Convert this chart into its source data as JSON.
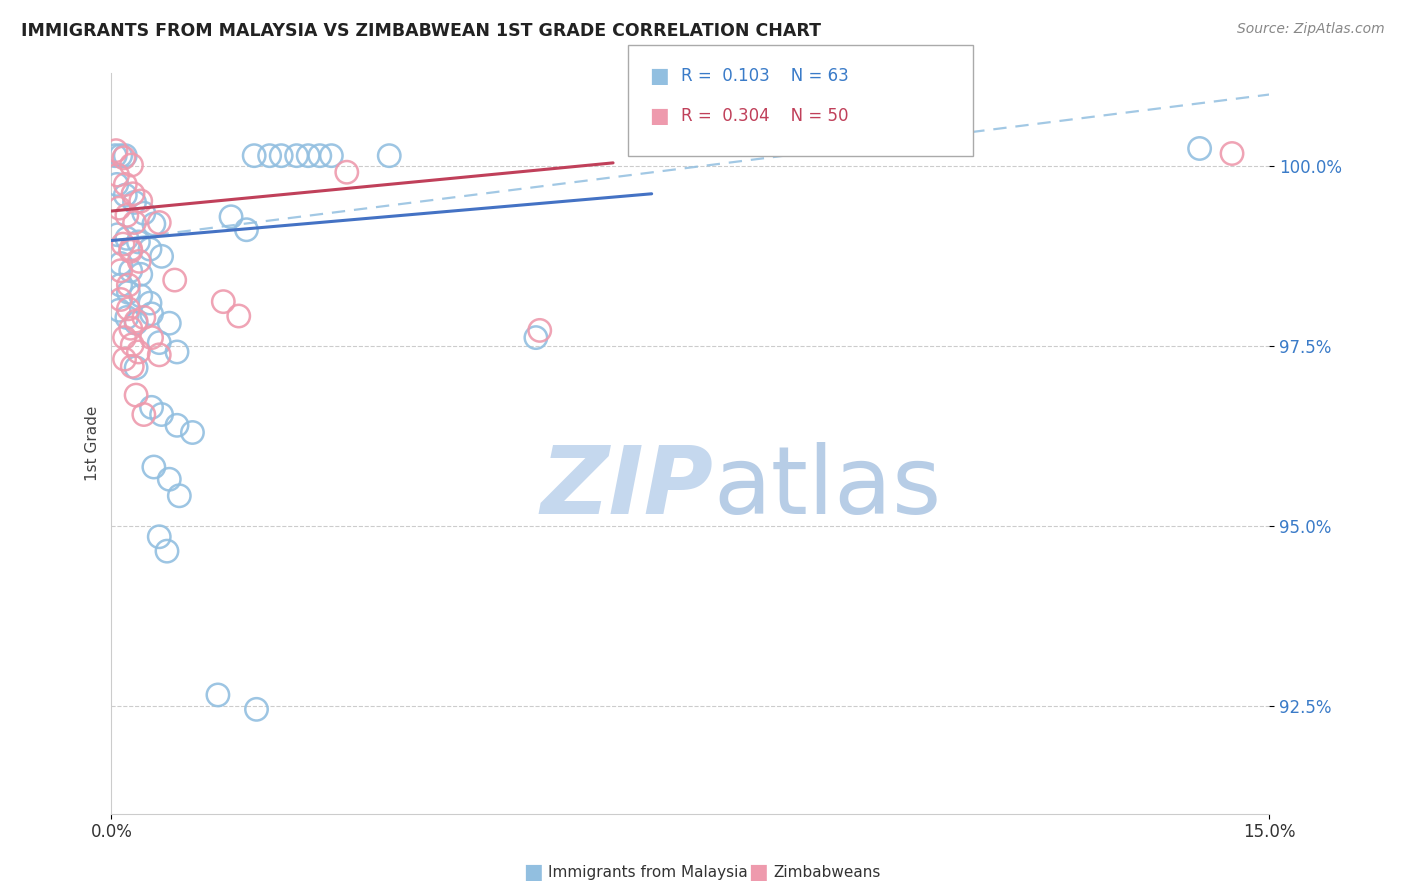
{
  "title": "IMMIGRANTS FROM MALAYSIA VS ZIMBABWEAN 1ST GRADE CORRELATION CHART",
  "source": "Source: ZipAtlas.com",
  "ylabel": "1st Grade",
  "y_ticks": [
    92.5,
    95.0,
    97.5,
    100.0
  ],
  "y_tick_labels": [
    "92.5%",
    "95.0%",
    "97.5%",
    "100.0%"
  ],
  "xlim": [
    0.0,
    15.0
  ],
  "ylim": [
    91.0,
    101.3
  ],
  "legend_blue_r": "0.103",
  "legend_blue_n": "63",
  "legend_pink_r": "0.304",
  "legend_pink_n": "50",
  "blue_color": "#92bfe0",
  "pink_color": "#ee9aad",
  "blue_line_color": "#4472c4",
  "pink_line_color": "#c0405a",
  "blue_dashed_color": "#92bfe0",
  "blue_scatter": [
    [
      0.05,
      100.15
    ],
    [
      0.12,
      100.15
    ],
    [
      0.18,
      100.15
    ],
    [
      1.85,
      100.15
    ],
    [
      2.05,
      100.15
    ],
    [
      2.2,
      100.15
    ],
    [
      2.4,
      100.15
    ],
    [
      2.55,
      100.15
    ],
    [
      2.7,
      100.15
    ],
    [
      2.85,
      100.15
    ],
    [
      3.6,
      100.15
    ],
    [
      0.07,
      99.75
    ],
    [
      0.18,
      99.6
    ],
    [
      0.3,
      99.5
    ],
    [
      0.42,
      99.35
    ],
    [
      0.55,
      99.2
    ],
    [
      0.08,
      99.05
    ],
    [
      0.2,
      99.0
    ],
    [
      0.35,
      98.95
    ],
    [
      0.5,
      98.85
    ],
    [
      0.65,
      98.75
    ],
    [
      0.12,
      98.65
    ],
    [
      0.25,
      98.55
    ],
    [
      0.38,
      98.5
    ],
    [
      0.12,
      98.35
    ],
    [
      0.22,
      98.25
    ],
    [
      0.38,
      98.2
    ],
    [
      0.5,
      98.1
    ],
    [
      0.1,
      98.0
    ],
    [
      0.2,
      97.9
    ],
    [
      0.32,
      97.82
    ],
    [
      1.55,
      99.3
    ],
    [
      1.75,
      99.12
    ],
    [
      0.52,
      97.95
    ],
    [
      0.75,
      97.82
    ],
    [
      0.62,
      97.55
    ],
    [
      0.85,
      97.42
    ],
    [
      0.32,
      97.2
    ],
    [
      0.52,
      96.65
    ],
    [
      0.65,
      96.55
    ],
    [
      0.85,
      96.4
    ],
    [
      1.05,
      96.3
    ],
    [
      0.55,
      95.82
    ],
    [
      0.75,
      95.65
    ],
    [
      0.88,
      95.42
    ],
    [
      0.62,
      94.85
    ],
    [
      0.72,
      94.65
    ],
    [
      1.38,
      92.65
    ],
    [
      1.88,
      92.45
    ],
    [
      5.5,
      97.62
    ],
    [
      14.1,
      100.25
    ]
  ],
  "pink_scatter": [
    [
      0.06,
      100.22
    ],
    [
      0.16,
      100.12
    ],
    [
      0.26,
      100.02
    ],
    [
      0.08,
      99.88
    ],
    [
      0.18,
      99.75
    ],
    [
      0.28,
      99.62
    ],
    [
      0.38,
      99.52
    ],
    [
      0.1,
      99.42
    ],
    [
      0.2,
      99.32
    ],
    [
      0.3,
      99.22
    ],
    [
      0.15,
      98.92
    ],
    [
      0.25,
      98.82
    ],
    [
      0.36,
      98.68
    ],
    [
      0.12,
      98.55
    ],
    [
      0.22,
      98.35
    ],
    [
      0.12,
      98.15
    ],
    [
      0.22,
      98.02
    ],
    [
      0.32,
      97.85
    ],
    [
      0.17,
      97.62
    ],
    [
      0.27,
      97.52
    ],
    [
      0.17,
      97.32
    ],
    [
      0.27,
      97.22
    ],
    [
      0.62,
      99.22
    ],
    [
      3.05,
      99.92
    ],
    [
      5.55,
      97.72
    ],
    [
      0.82,
      98.42
    ],
    [
      1.45,
      98.12
    ],
    [
      1.65,
      97.92
    ],
    [
      14.52,
      100.18
    ],
    [
      0.25,
      97.75
    ],
    [
      0.35,
      97.42
    ],
    [
      0.32,
      96.82
    ],
    [
      0.42,
      96.55
    ],
    [
      0.42,
      97.9
    ],
    [
      0.52,
      97.62
    ],
    [
      0.62,
      97.38
    ],
    [
      0.25,
      98.85
    ]
  ],
  "blue_trend_x0": 0.0,
  "blue_trend_y0": 98.97,
  "blue_trend_x1": 7.0,
  "blue_trend_y1": 99.62,
  "pink_trend_x0": 0.0,
  "pink_trend_y0": 99.38,
  "pink_trend_x1": 6.5,
  "pink_trend_y1": 100.05,
  "blue_dashed_x0": 0.0,
  "blue_dashed_y0": 98.97,
  "blue_dashed_x1": 15.0,
  "blue_dashed_y1": 101.0,
  "watermark_zip_color": "#c5d8ee",
  "watermark_atlas_color": "#b0c8e4",
  "background_color": "#ffffff"
}
